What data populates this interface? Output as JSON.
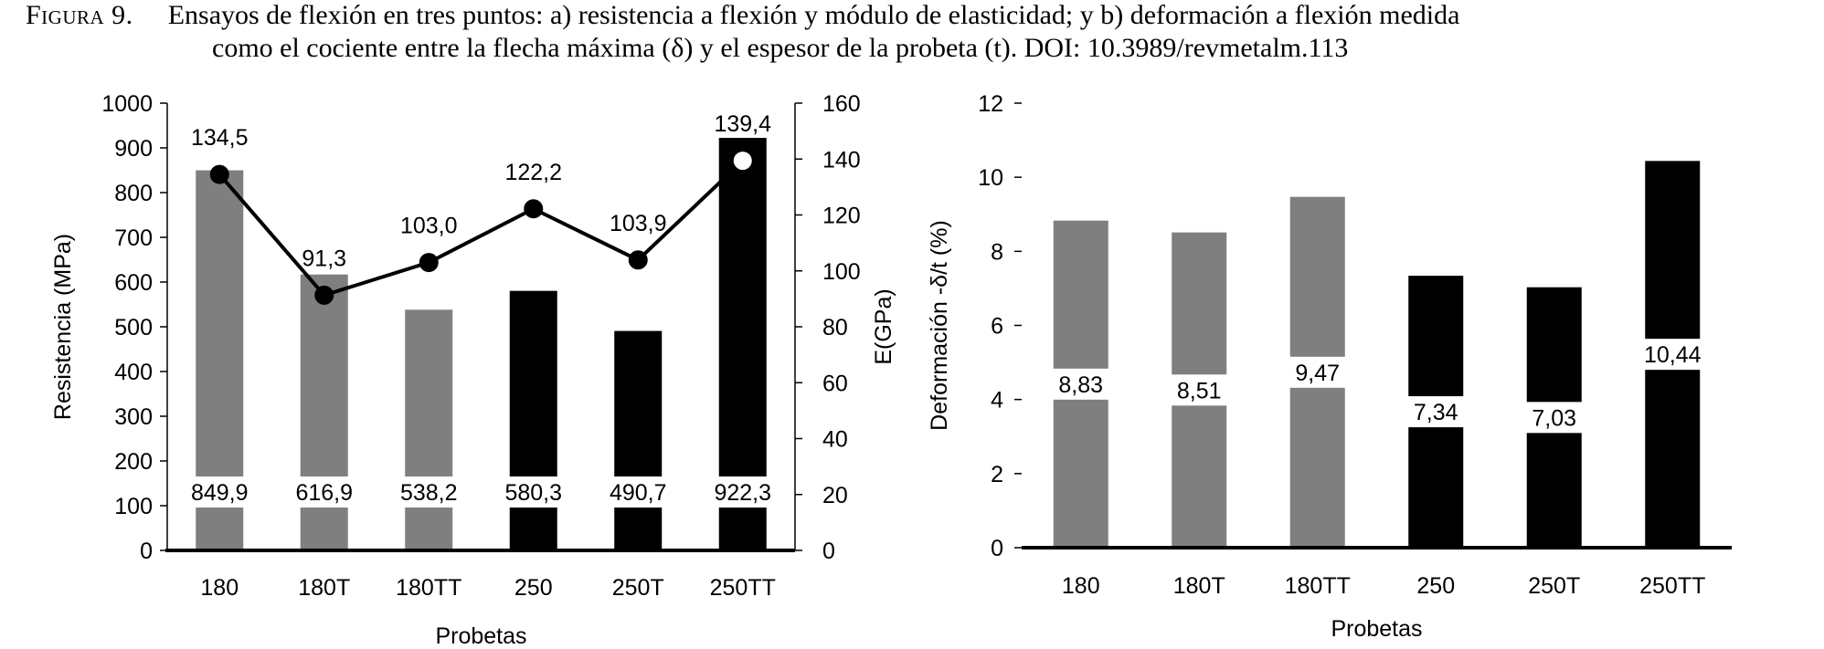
{
  "caption": {
    "label": "Figura 9.",
    "line1": "Ensayos de flexión en tres puntos: a) resistencia a flexión y módulo de elasticidad; y b) deformación a flexión medida",
    "line2": "como el cociente entre la flecha máxima (δ) y el espesor de la probeta (t). DOI: 10.3989/revmetalm.113"
  },
  "colors": {
    "gray_bar": "#7f7f7f",
    "black_bar": "#000000",
    "line": "#000000"
  },
  "chart_data": [
    {
      "type": "bar",
      "panel": "a",
      "categories": [
        "180",
        "180T",
        "180TT",
        "250",
        "250T",
        "250TT"
      ],
      "series": [
        {
          "name": "Resistencia",
          "axis": "left",
          "values": [
            849.9,
            616.9,
            538.2,
            580.3,
            490.7,
            922.3
          ],
          "labels": [
            "849,9",
            "616,9",
            "538,2",
            "580,3",
            "490,7",
            "922,3"
          ],
          "colors": [
            "#7f7f7f",
            "#7f7f7f",
            "#7f7f7f",
            "#000000",
            "#000000",
            "#000000"
          ]
        },
        {
          "name": "E",
          "type": "line",
          "axis": "right",
          "values": [
            134.5,
            91.3,
            103.0,
            122.2,
            103.9,
            139.4
          ],
          "labels": [
            "134,5",
            "91,3",
            "103,0",
            "122,2",
            "103,9",
            "139,4"
          ]
        }
      ],
      "xlabel": "Probetas",
      "ylabel": "Resistencia (MPa)",
      "y2label": "E(GPa)",
      "ylim": [
        0,
        1000
      ],
      "y2lim": [
        0,
        160
      ],
      "yticks": [
        "0",
        "100",
        "200",
        "300",
        "400",
        "500",
        "600",
        "700",
        "800",
        "900",
        "1000"
      ],
      "y2ticks": [
        "0",
        "20",
        "40",
        "60",
        "80",
        "100",
        "120",
        "140",
        "160"
      ],
      "grid": false,
      "legend": "none"
    },
    {
      "type": "bar",
      "panel": "b",
      "categories": [
        "180",
        "180T",
        "180TT",
        "250",
        "250T",
        "250TT"
      ],
      "series": [
        {
          "name": "Deformación",
          "values": [
            8.83,
            8.51,
            9.47,
            7.34,
            7.03,
            10.44
          ],
          "labels": [
            "8,83",
            "8,51",
            "9,47",
            "7,34",
            "7,03",
            "10,44"
          ],
          "colors": [
            "#7f7f7f",
            "#7f7f7f",
            "#7f7f7f",
            "#000000",
            "#000000",
            "#000000"
          ]
        }
      ],
      "xlabel": "Probetas",
      "ylabel": "Deformación -δ/t (%)",
      "ylim": [
        0,
        12
      ],
      "yticks": [
        "0",
        "2",
        "4",
        "6",
        "8",
        "10",
        "12"
      ],
      "grid": false,
      "legend": "none"
    }
  ]
}
